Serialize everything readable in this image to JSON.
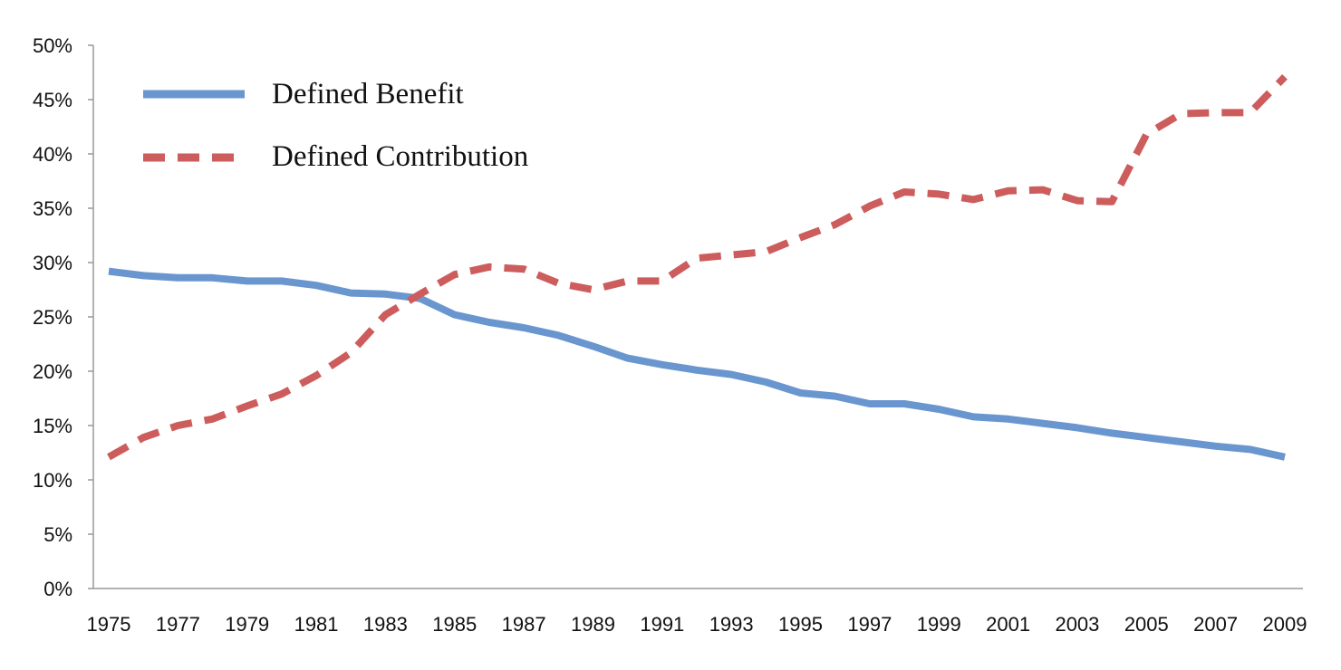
{
  "chart_data": {
    "type": "line",
    "title": "",
    "xlabel": "",
    "ylabel": "",
    "x": [
      1975,
      1976,
      1977,
      1978,
      1979,
      1980,
      1981,
      1982,
      1983,
      1984,
      1985,
      1986,
      1987,
      1988,
      1989,
      1990,
      1991,
      1992,
      1993,
      1994,
      1995,
      1996,
      1997,
      1998,
      1999,
      2000,
      2001,
      2002,
      2003,
      2004,
      2005,
      2006,
      2007,
      2008,
      2009
    ],
    "x_tick_labels": [
      "1975",
      "1977",
      "1979",
      "1981",
      "1983",
      "1985",
      "1987",
      "1989",
      "1991",
      "1993",
      "1995",
      "1997",
      "1999",
      "2001",
      "2003",
      "2005",
      "2007",
      "2009"
    ],
    "y_tick_labels": [
      "0%",
      "5%",
      "10%",
      "15%",
      "20%",
      "25%",
      "30%",
      "35%",
      "40%",
      "45%",
      "50%"
    ],
    "ylim": [
      0,
      50
    ],
    "xlim": [
      1975,
      2009
    ],
    "grid": false,
    "legend_placement": "top-left",
    "series": [
      {
        "name": "Defined Benefit",
        "color": "#6a96cf",
        "style": "solid",
        "values": [
          29.2,
          28.8,
          28.6,
          28.6,
          28.3,
          28.3,
          27.9,
          27.2,
          27.1,
          26.7,
          25.2,
          24.5,
          24.0,
          23.3,
          22.3,
          21.2,
          20.6,
          20.1,
          19.7,
          19.0,
          18.0,
          17.7,
          17.0,
          17.0,
          16.5,
          15.8,
          15.6,
          15.2,
          14.8,
          14.3,
          13.9,
          13.5,
          13.1,
          12.8,
          12.1
        ]
      },
      {
        "name": "Defined Contribution",
        "color": "#cd5c5c",
        "style": "dashed",
        "values": [
          12.1,
          13.9,
          15.0,
          15.6,
          16.8,
          17.9,
          19.6,
          21.7,
          25.2,
          27.1,
          28.9,
          29.6,
          29.4,
          28.1,
          27.5,
          28.3,
          28.3,
          30.4,
          30.7,
          31.0,
          32.3,
          33.5,
          35.2,
          36.5,
          36.3,
          35.8,
          36.6,
          36.7,
          35.7,
          35.6,
          41.8,
          43.7,
          43.8,
          43.8,
          47.1
        ]
      }
    ]
  }
}
